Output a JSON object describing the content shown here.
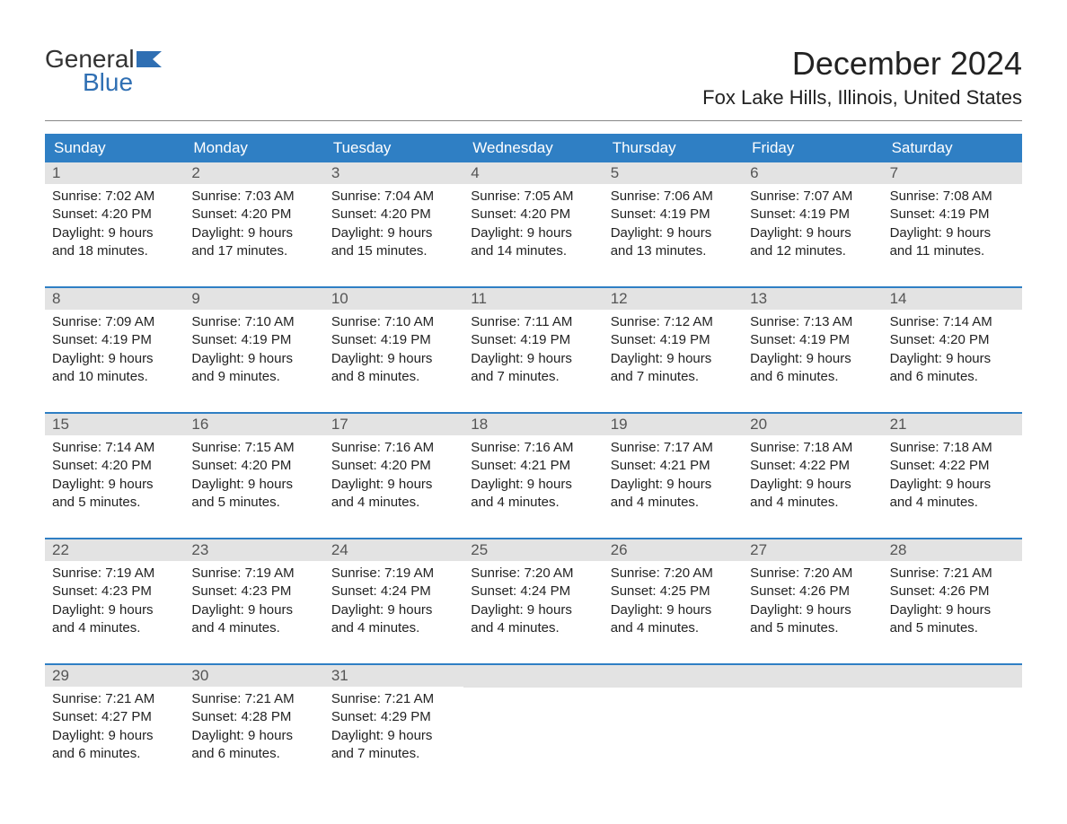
{
  "logo": {
    "general": "General",
    "blue": "Blue",
    "flag_color": "#2f6fb3"
  },
  "header": {
    "month_title": "December 2024",
    "location": "Fox Lake Hills, Illinois, United States"
  },
  "colors": {
    "header_bg": "#2f7fc4",
    "header_text": "#ffffff",
    "day_number_bg": "#e3e3e3",
    "day_number_text": "#555555",
    "body_text": "#222222",
    "week_border": "#2f7fc4",
    "divider": "#888888",
    "background": "#ffffff"
  },
  "typography": {
    "title_fontsize": 36,
    "location_fontsize": 22,
    "dayheader_fontsize": 17,
    "daynumber_fontsize": 17,
    "content_fontsize": 15
  },
  "day_headers": [
    "Sunday",
    "Monday",
    "Tuesday",
    "Wednesday",
    "Thursday",
    "Friday",
    "Saturday"
  ],
  "weeks": [
    [
      {
        "num": "1",
        "sunrise": "Sunrise: 7:02 AM",
        "sunset": "Sunset: 4:20 PM",
        "daylight1": "Daylight: 9 hours",
        "daylight2": "and 18 minutes."
      },
      {
        "num": "2",
        "sunrise": "Sunrise: 7:03 AM",
        "sunset": "Sunset: 4:20 PM",
        "daylight1": "Daylight: 9 hours",
        "daylight2": "and 17 minutes."
      },
      {
        "num": "3",
        "sunrise": "Sunrise: 7:04 AM",
        "sunset": "Sunset: 4:20 PM",
        "daylight1": "Daylight: 9 hours",
        "daylight2": "and 15 minutes."
      },
      {
        "num": "4",
        "sunrise": "Sunrise: 7:05 AM",
        "sunset": "Sunset: 4:20 PM",
        "daylight1": "Daylight: 9 hours",
        "daylight2": "and 14 minutes."
      },
      {
        "num": "5",
        "sunrise": "Sunrise: 7:06 AM",
        "sunset": "Sunset: 4:19 PM",
        "daylight1": "Daylight: 9 hours",
        "daylight2": "and 13 minutes."
      },
      {
        "num": "6",
        "sunrise": "Sunrise: 7:07 AM",
        "sunset": "Sunset: 4:19 PM",
        "daylight1": "Daylight: 9 hours",
        "daylight2": "and 12 minutes."
      },
      {
        "num": "7",
        "sunrise": "Sunrise: 7:08 AM",
        "sunset": "Sunset: 4:19 PM",
        "daylight1": "Daylight: 9 hours",
        "daylight2": "and 11 minutes."
      }
    ],
    [
      {
        "num": "8",
        "sunrise": "Sunrise: 7:09 AM",
        "sunset": "Sunset: 4:19 PM",
        "daylight1": "Daylight: 9 hours",
        "daylight2": "and 10 minutes."
      },
      {
        "num": "9",
        "sunrise": "Sunrise: 7:10 AM",
        "sunset": "Sunset: 4:19 PM",
        "daylight1": "Daylight: 9 hours",
        "daylight2": "and 9 minutes."
      },
      {
        "num": "10",
        "sunrise": "Sunrise: 7:10 AM",
        "sunset": "Sunset: 4:19 PM",
        "daylight1": "Daylight: 9 hours",
        "daylight2": "and 8 minutes."
      },
      {
        "num": "11",
        "sunrise": "Sunrise: 7:11 AM",
        "sunset": "Sunset: 4:19 PM",
        "daylight1": "Daylight: 9 hours",
        "daylight2": "and 7 minutes."
      },
      {
        "num": "12",
        "sunrise": "Sunrise: 7:12 AM",
        "sunset": "Sunset: 4:19 PM",
        "daylight1": "Daylight: 9 hours",
        "daylight2": "and 7 minutes."
      },
      {
        "num": "13",
        "sunrise": "Sunrise: 7:13 AM",
        "sunset": "Sunset: 4:19 PM",
        "daylight1": "Daylight: 9 hours",
        "daylight2": "and 6 minutes."
      },
      {
        "num": "14",
        "sunrise": "Sunrise: 7:14 AM",
        "sunset": "Sunset: 4:20 PM",
        "daylight1": "Daylight: 9 hours",
        "daylight2": "and 6 minutes."
      }
    ],
    [
      {
        "num": "15",
        "sunrise": "Sunrise: 7:14 AM",
        "sunset": "Sunset: 4:20 PM",
        "daylight1": "Daylight: 9 hours",
        "daylight2": "and 5 minutes."
      },
      {
        "num": "16",
        "sunrise": "Sunrise: 7:15 AM",
        "sunset": "Sunset: 4:20 PM",
        "daylight1": "Daylight: 9 hours",
        "daylight2": "and 5 minutes."
      },
      {
        "num": "17",
        "sunrise": "Sunrise: 7:16 AM",
        "sunset": "Sunset: 4:20 PM",
        "daylight1": "Daylight: 9 hours",
        "daylight2": "and 4 minutes."
      },
      {
        "num": "18",
        "sunrise": "Sunrise: 7:16 AM",
        "sunset": "Sunset: 4:21 PM",
        "daylight1": "Daylight: 9 hours",
        "daylight2": "and 4 minutes."
      },
      {
        "num": "19",
        "sunrise": "Sunrise: 7:17 AM",
        "sunset": "Sunset: 4:21 PM",
        "daylight1": "Daylight: 9 hours",
        "daylight2": "and 4 minutes."
      },
      {
        "num": "20",
        "sunrise": "Sunrise: 7:18 AM",
        "sunset": "Sunset: 4:22 PM",
        "daylight1": "Daylight: 9 hours",
        "daylight2": "and 4 minutes."
      },
      {
        "num": "21",
        "sunrise": "Sunrise: 7:18 AM",
        "sunset": "Sunset: 4:22 PM",
        "daylight1": "Daylight: 9 hours",
        "daylight2": "and 4 minutes."
      }
    ],
    [
      {
        "num": "22",
        "sunrise": "Sunrise: 7:19 AM",
        "sunset": "Sunset: 4:23 PM",
        "daylight1": "Daylight: 9 hours",
        "daylight2": "and 4 minutes."
      },
      {
        "num": "23",
        "sunrise": "Sunrise: 7:19 AM",
        "sunset": "Sunset: 4:23 PM",
        "daylight1": "Daylight: 9 hours",
        "daylight2": "and 4 minutes."
      },
      {
        "num": "24",
        "sunrise": "Sunrise: 7:19 AM",
        "sunset": "Sunset: 4:24 PM",
        "daylight1": "Daylight: 9 hours",
        "daylight2": "and 4 minutes."
      },
      {
        "num": "25",
        "sunrise": "Sunrise: 7:20 AM",
        "sunset": "Sunset: 4:24 PM",
        "daylight1": "Daylight: 9 hours",
        "daylight2": "and 4 minutes."
      },
      {
        "num": "26",
        "sunrise": "Sunrise: 7:20 AM",
        "sunset": "Sunset: 4:25 PM",
        "daylight1": "Daylight: 9 hours",
        "daylight2": "and 4 minutes."
      },
      {
        "num": "27",
        "sunrise": "Sunrise: 7:20 AM",
        "sunset": "Sunset: 4:26 PM",
        "daylight1": "Daylight: 9 hours",
        "daylight2": "and 5 minutes."
      },
      {
        "num": "28",
        "sunrise": "Sunrise: 7:21 AM",
        "sunset": "Sunset: 4:26 PM",
        "daylight1": "Daylight: 9 hours",
        "daylight2": "and 5 minutes."
      }
    ],
    [
      {
        "num": "29",
        "sunrise": "Sunrise: 7:21 AM",
        "sunset": "Sunset: 4:27 PM",
        "daylight1": "Daylight: 9 hours",
        "daylight2": "and 6 minutes."
      },
      {
        "num": "30",
        "sunrise": "Sunrise: 7:21 AM",
        "sunset": "Sunset: 4:28 PM",
        "daylight1": "Daylight: 9 hours",
        "daylight2": "and 6 minutes."
      },
      {
        "num": "31",
        "sunrise": "Sunrise: 7:21 AM",
        "sunset": "Sunset: 4:29 PM",
        "daylight1": "Daylight: 9 hours",
        "daylight2": "and 7 minutes."
      },
      null,
      null,
      null,
      null
    ]
  ]
}
